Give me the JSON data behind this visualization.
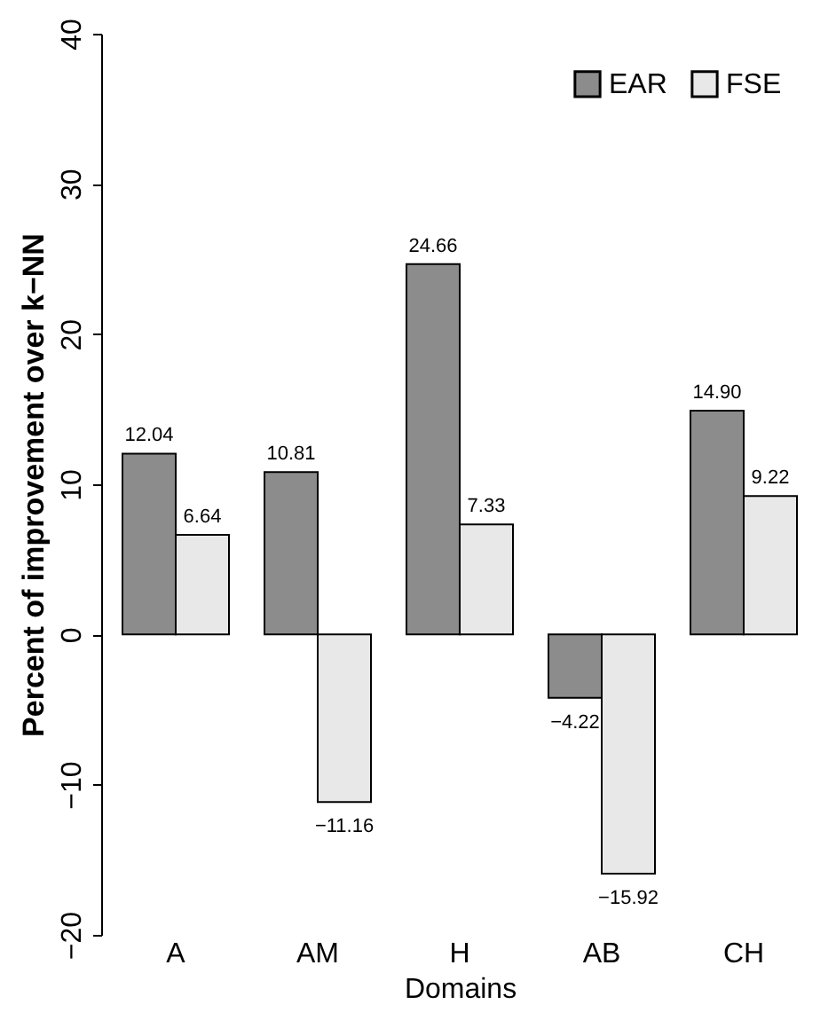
{
  "chart_data": {
    "type": "bar",
    "xlabel": "Domains",
    "ylabel": "Percent of improvement over k−NN",
    "categories": [
      "A",
      "AM",
      "H",
      "AB",
      "CH"
    ],
    "series": [
      {
        "name": "EAR",
        "color": "#8c8c8c",
        "values": [
          12.04,
          10.81,
          24.66,
          -4.22,
          14.9
        ],
        "value_labels": [
          "12.04",
          "10.81",
          "24.66",
          "−4.22",
          "14.90"
        ]
      },
      {
        "name": "FSE",
        "color": "#e8e8e8",
        "values": [
          6.64,
          -11.16,
          7.33,
          -15.92,
          9.22
        ],
        "value_labels": [
          "6.64",
          "−11.16",
          "7.33",
          "−15.92",
          "9.22"
        ]
      }
    ],
    "ylim": [
      -20,
      40
    ],
    "yticks": [
      -20,
      -10,
      0,
      10,
      20,
      30,
      40
    ],
    "grid": false,
    "legend": "top right"
  }
}
